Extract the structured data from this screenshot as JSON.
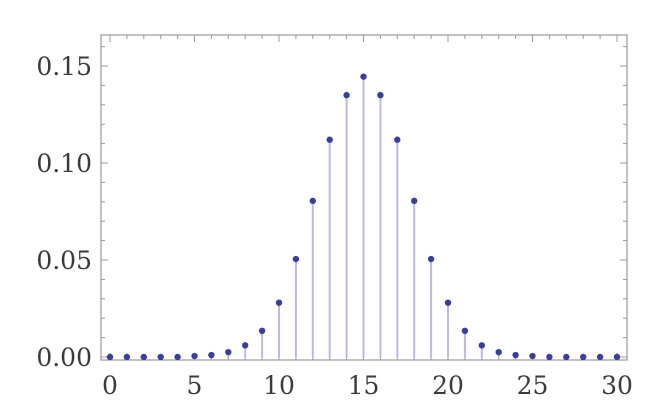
{
  "chart_data": {
    "type": "scatter",
    "style": "stem",
    "title": "",
    "xlabel": "",
    "ylabel": "",
    "xlim": [
      0,
      30
    ],
    "ylim": [
      0,
      0.16
    ],
    "xticks": [
      0,
      5,
      10,
      15,
      20,
      25,
      30
    ],
    "xtick_labels": [
      "0",
      "5",
      "10",
      "15",
      "20",
      "25",
      "30"
    ],
    "yticks": [
      0,
      0.05,
      0.1,
      0.15
    ],
    "ytick_labels": [
      "0.00",
      "0.05",
      "0.10",
      "0.15"
    ],
    "grid": false,
    "colors": {
      "point": "#3b3f9a",
      "stem": "#b9b9e3",
      "frame": "#9a9a9a"
    },
    "x": [
      0,
      1,
      2,
      3,
      4,
      5,
      6,
      7,
      8,
      9,
      10,
      11,
      12,
      13,
      14,
      15,
      16,
      17,
      18,
      19,
      20,
      21,
      22,
      23,
      24,
      25,
      26,
      27,
      28,
      29,
      30
    ],
    "values": [
      0.0,
      0.0,
      0.0,
      0.0,
      0.0,
      0.0005,
      0.001,
      0.0025,
      0.006,
      0.0135,
      0.028,
      0.0505,
      0.0805,
      0.112,
      0.135,
      0.1445,
      0.135,
      0.112,
      0.0805,
      0.0505,
      0.028,
      0.0135,
      0.006,
      0.0025,
      0.001,
      0.0005,
      0.0,
      0.0,
      0.0,
      0.0,
      0.0
    ]
  }
}
